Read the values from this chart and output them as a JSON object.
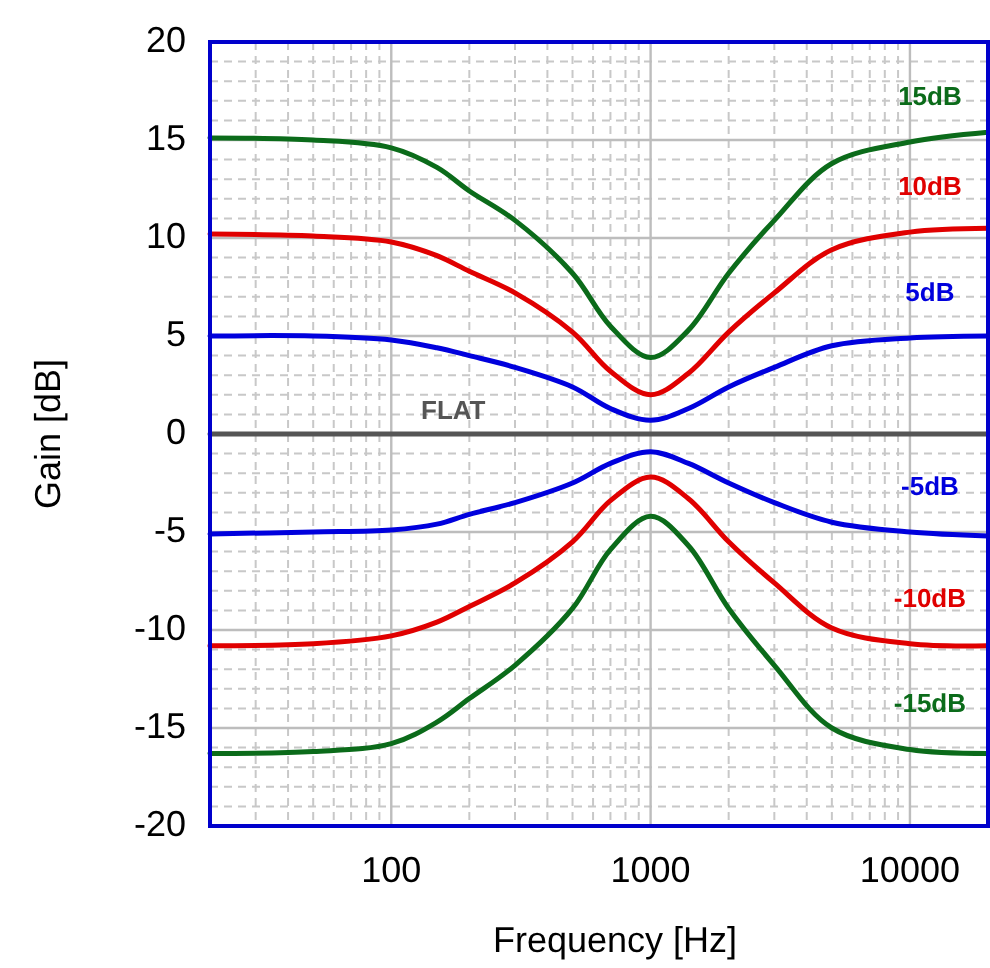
{
  "chart_data": {
    "type": "line",
    "xlabel": "Frequency [Hz]",
    "ylabel": "Gain [dB]",
    "log": "x",
    "grid": true,
    "line_style": "solid",
    "x": [
      20,
      50,
      100,
      150,
      200,
      300,
      500,
      700,
      1000,
      1400,
      2000,
      3000,
      5000,
      10000,
      20000
    ],
    "xlim": [
      20,
      20000
    ],
    "xticks": [
      100,
      1000,
      10000
    ],
    "ylim": [
      -20,
      20
    ],
    "yticks": [
      -20,
      -15,
      -10,
      -5,
      0,
      5,
      10,
      15,
      20
    ],
    "series": [
      {
        "name": "15dB",
        "color": "#0b6b1a",
        "values": [
          15.1,
          15.0,
          14.6,
          13.6,
          12.4,
          10.9,
          8.2,
          5.5,
          3.9,
          5.3,
          8.2,
          10.9,
          13.8,
          14.9,
          15.4
        ]
      },
      {
        "name": "10dB",
        "color": "#e00000",
        "values": [
          10.2,
          10.1,
          9.8,
          9.1,
          8.3,
          7.2,
          5.2,
          3.2,
          2.0,
          3.1,
          5.2,
          7.2,
          9.4,
          10.3,
          10.5
        ]
      },
      {
        "name": "5dB",
        "color": "#0000dd",
        "values": [
          5.0,
          5.0,
          4.8,
          4.4,
          4.0,
          3.4,
          2.4,
          1.3,
          0.7,
          1.3,
          2.4,
          3.4,
          4.5,
          4.9,
          5.0
        ]
      },
      {
        "name": "FLAT",
        "color": "#555555",
        "values": [
          0,
          0,
          0,
          0,
          0,
          0,
          0,
          0,
          0,
          0,
          0,
          0,
          0,
          0,
          0
        ]
      },
      {
        "name": "-5dB",
        "color": "#0000dd",
        "values": [
          -5.1,
          -5.0,
          -4.9,
          -4.6,
          -4.1,
          -3.5,
          -2.5,
          -1.5,
          -0.9,
          -1.5,
          -2.5,
          -3.5,
          -4.5,
          -5.0,
          -5.2
        ]
      },
      {
        "name": "-10dB",
        "color": "#e00000",
        "values": [
          -10.8,
          -10.7,
          -10.3,
          -9.6,
          -8.8,
          -7.6,
          -5.5,
          -3.4,
          -2.2,
          -3.3,
          -5.5,
          -7.6,
          -9.9,
          -10.7,
          -10.8
        ]
      },
      {
        "name": "-15dB",
        "color": "#0b6b1a",
        "values": [
          -16.3,
          -16.2,
          -15.8,
          -14.7,
          -13.5,
          -11.8,
          -8.9,
          -5.9,
          -4.2,
          -5.7,
          -8.9,
          -11.8,
          -15.0,
          -16.1,
          -16.3
        ]
      }
    ]
  }
}
